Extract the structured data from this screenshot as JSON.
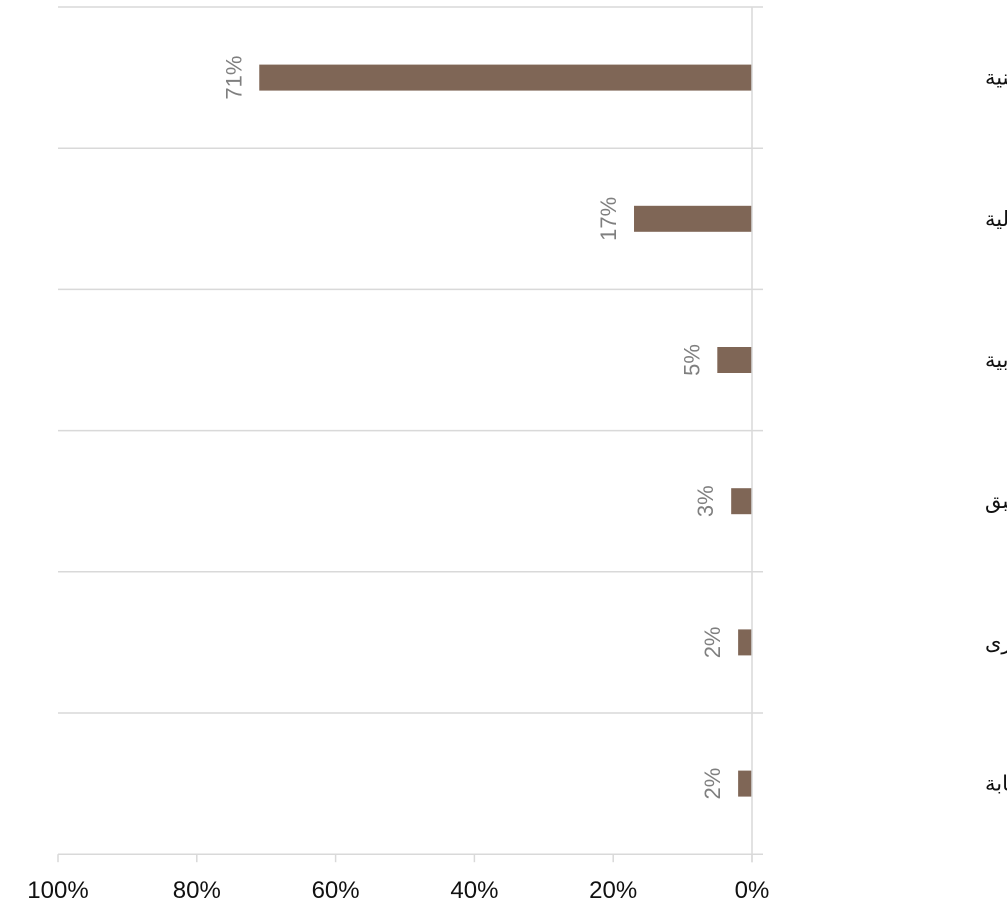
{
  "chart_data": {
    "type": "bar",
    "orientation": "horizontal",
    "x_axis_reversed": true,
    "categories": [
      "جهة فلسطينية",
      "جهة دولية",
      "جهة عربية",
      "لا أحد مما سبق",
      "أخرى",
      "لا أعرف / لا إجابة"
    ],
    "values": [
      71,
      17,
      5,
      3,
      2,
      2
    ],
    "data_labels": [
      "71%",
      "17%",
      "5%",
      "3%",
      "2%",
      "2%"
    ],
    "xlim": [
      0,
      100
    ],
    "ticks": [
      0,
      20,
      40,
      60,
      80,
      100
    ],
    "tick_labels": [
      "0%",
      "20%",
      "40%",
      "60%",
      "80%",
      "100%"
    ],
    "grid": true,
    "legend": "none",
    "colors": {
      "bar": "#7f6656",
      "grid": "#d9d9d9",
      "data_label": "#7f7f7f",
      "text": "#111111"
    }
  }
}
